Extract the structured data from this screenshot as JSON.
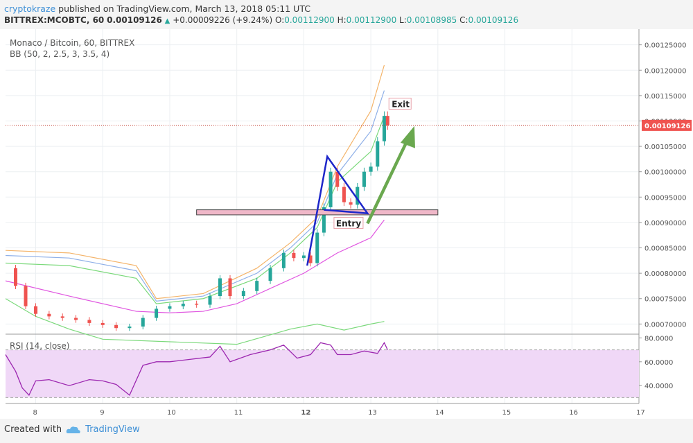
{
  "header": {
    "username": "cryptokraze",
    "published_text": " published on TradingView.com, March 13, 2018 05:11 UTC",
    "symbol": "BITTREX:MCOBTC, 60",
    "last": "0.00109126",
    "change_arrow": "▲",
    "change": "+0.00009226 (+9.24%)",
    "o_label": "O:",
    "o_value": "0.00112900",
    "h_label": "H:",
    "h_value": "0.00112900",
    "l_label": "L:",
    "l_value": "0.00108985",
    "c_label": "C:",
    "c_value": "0.00109126"
  },
  "legend": {
    "pair": "Monaco / Bitcoin, 60, BITTREX",
    "indicator": "BB (50, 2, 2.5, 3, 3.5, 4)",
    "rsi": "RSI (14, close)"
  },
  "annotations": {
    "exit": "Exit",
    "entry": "Entry"
  },
  "price_tag": "0.00109126",
  "footer": {
    "created_with": "Created with",
    "brand": "TradingView",
    "brand_icon": "tradingview-cloud-icon"
  },
  "colors": {
    "up": "#26a69a",
    "down": "#ef5350",
    "blue_line": "#1d26c9",
    "arrow": "#6aa84f",
    "bb_orange": "#f4b46a",
    "bb_blue": "#8fb0e8",
    "bb_green": "#7bd97b",
    "bb_magenta": "#e056e0",
    "zone_fill": "#efb7c8",
    "rsi_line": "#9c27b0",
    "rsi_band": "#f0d8f7",
    "price_tag_bg": "#ef5350"
  },
  "chart_data": [
    {
      "type": "candlestick",
      "x_tick_labels": [
        "8",
        "9",
        "10",
        "11",
        "12",
        "13",
        "14",
        "15",
        "16",
        "17"
      ],
      "y_tick_labels": [
        "0.00070000",
        "0.00075000",
        "0.00080000",
        "0.00085000",
        "0.00090000",
        "0.00095000",
        "0.00100000",
        "0.00105000",
        "0.00110000",
        "0.00115000",
        "0.00120000",
        "0.00125000"
      ],
      "ylim": [
        0.00068,
        0.00127
      ],
      "xlim": [
        7.55,
        17.0
      ],
      "last_price": 0.00109126,
      "grid": true,
      "close": [
        {
          "x": 7.55,
          "y": 0.00081
        },
        {
          "x": 7.7,
          "y": 0.000775
        },
        {
          "x": 7.85,
          "y": 0.000735
        },
        {
          "x": 8.0,
          "y": 0.00072
        },
        {
          "x": 8.2,
          "y": 0.000715
        },
        {
          "x": 8.4,
          "y": 0.000712
        },
        {
          "x": 8.6,
          "y": 0.000708
        },
        {
          "x": 8.8,
          "y": 0.000702
        },
        {
          "x": 9.0,
          "y": 0.000698
        },
        {
          "x": 9.2,
          "y": 0.000692
        },
        {
          "x": 9.4,
          "y": 0.000695
        },
        {
          "x": 9.6,
          "y": 0.000712
        },
        {
          "x": 9.8,
          "y": 0.00073
        },
        {
          "x": 10.0,
          "y": 0.000735
        },
        {
          "x": 10.2,
          "y": 0.00074
        },
        {
          "x": 10.4,
          "y": 0.000738
        },
        {
          "x": 10.6,
          "y": 0.000755
        },
        {
          "x": 10.75,
          "y": 0.00079
        },
        {
          "x": 10.9,
          "y": 0.000755
        },
        {
          "x": 11.1,
          "y": 0.000765
        },
        {
          "x": 11.3,
          "y": 0.000785
        },
        {
          "x": 11.5,
          "y": 0.00081
        },
        {
          "x": 11.7,
          "y": 0.00084
        },
        {
          "x": 11.85,
          "y": 0.00083
        },
        {
          "x": 12.0,
          "y": 0.000835
        },
        {
          "x": 12.1,
          "y": 0.00082
        },
        {
          "x": 12.2,
          "y": 0.00088
        },
        {
          "x": 12.3,
          "y": 0.00093
        },
        {
          "x": 12.4,
          "y": 0.001
        },
        {
          "x": 12.5,
          "y": 0.00097
        },
        {
          "x": 12.6,
          "y": 0.00094
        },
        {
          "x": 12.7,
          "y": 0.000935
        },
        {
          "x": 12.8,
          "y": 0.00097
        },
        {
          "x": 12.9,
          "y": 0.001
        },
        {
          "x": 13.0,
          "y": 0.00101
        },
        {
          "x": 13.1,
          "y": 0.00106
        },
        {
          "x": 13.2,
          "y": 0.00111
        },
        {
          "x": 13.25,
          "y": 0.00109126
        }
      ],
      "bollinger": {
        "upper_outer": [
          {
            "x": 7.55,
            "y": 0.000845
          },
          {
            "x": 8.5,
            "y": 0.00084
          },
          {
            "x": 9.5,
            "y": 0.000815
          },
          {
            "x": 9.8,
            "y": 0.00075
          },
          {
            "x": 10.5,
            "y": 0.00076
          },
          {
            "x": 11.3,
            "y": 0.00081
          },
          {
            "x": 11.8,
            "y": 0.00086
          },
          {
            "x": 12.2,
            "y": 0.00091
          },
          {
            "x": 12.5,
            "y": 0.00101
          },
          {
            "x": 13.0,
            "y": 0.00112
          },
          {
            "x": 13.2,
            "y": 0.00121
          }
        ],
        "upper_inner": [
          {
            "x": 7.55,
            "y": 0.000835
          },
          {
            "x": 8.5,
            "y": 0.00083
          },
          {
            "x": 9.5,
            "y": 0.000805
          },
          {
            "x": 9.8,
            "y": 0.000745
          },
          {
            "x": 10.5,
            "y": 0.000755
          },
          {
            "x": 11.3,
            "y": 0.0008
          },
          {
            "x": 11.8,
            "y": 0.00085
          },
          {
            "x": 12.2,
            "y": 0.0009
          },
          {
            "x": 12.5,
            "y": 0.000995
          },
          {
            "x": 13.0,
            "y": 0.00108
          },
          {
            "x": 13.2,
            "y": 0.00116
          }
        ],
        "mid": [
          {
            "x": 7.55,
            "y": 0.00082
          },
          {
            "x": 8.5,
            "y": 0.000815
          },
          {
            "x": 9.5,
            "y": 0.00079
          },
          {
            "x": 9.8,
            "y": 0.00074
          },
          {
            "x": 10.5,
            "y": 0.00075
          },
          {
            "x": 11.3,
            "y": 0.00079
          },
          {
            "x": 11.8,
            "y": 0.00084
          },
          {
            "x": 12.2,
            "y": 0.00089
          },
          {
            "x": 12.5,
            "y": 0.00098
          },
          {
            "x": 13.0,
            "y": 0.00104
          },
          {
            "x": 13.2,
            "y": 0.00111
          }
        ],
        "basis": [
          {
            "x": 7.55,
            "y": 0.000785
          },
          {
            "x": 8.5,
            "y": 0.000755
          },
          {
            "x": 9.5,
            "y": 0.000725
          },
          {
            "x": 10.0,
            "y": 0.000722
          },
          {
            "x": 10.5,
            "y": 0.000725
          },
          {
            "x": 11.0,
            "y": 0.00074
          },
          {
            "x": 11.5,
            "y": 0.00077
          },
          {
            "x": 12.0,
            "y": 0.0008
          },
          {
            "x": 12.5,
            "y": 0.00084
          },
          {
            "x": 13.0,
            "y": 0.00087
          },
          {
            "x": 13.2,
            "y": 0.000905
          }
        ],
        "lower": [
          {
            "x": 7.55,
            "y": 0.00075
          },
          {
            "x": 8.0,
            "y": 0.000715
          },
          {
            "x": 8.5,
            "y": 0.00069
          },
          {
            "x": 9.0,
            "y": 0.00067
          },
          {
            "x": 11.0,
            "y": 0.00066
          },
          {
            "x": 11.8,
            "y": 0.00069
          },
          {
            "x": 12.2,
            "y": 0.0007
          },
          {
            "x": 12.6,
            "y": 0.000688
          },
          {
            "x": 13.0,
            "y": 0.0007
          },
          {
            "x": 13.2,
            "y": 0.000705
          }
        ]
      },
      "pattern_lines": [
        {
          "x": 12.05,
          "y": 0.000815
        },
        {
          "x": 12.35,
          "y": 0.00103
        },
        {
          "x": 12.95,
          "y": 0.000918
        },
        {
          "x": 12.3,
          "y": 0.000925
        }
      ],
      "zone": {
        "x0": 10.4,
        "x1": 14.0,
        "y0": 0.000915,
        "y1": 0.000925
      },
      "arrow": {
        "x0": 12.95,
        "y0": 0.000898,
        "x1": 13.65,
        "y1": 0.00109
      }
    },
    {
      "type": "line",
      "name": "RSI (14, close)",
      "y_tick_labels": [
        "40.0000",
        "60.0000",
        "80.0000"
      ],
      "ylim": [
        25,
        82
      ],
      "levels": [
        30,
        70
      ],
      "x": [
        7.55,
        7.7,
        7.8,
        7.9,
        8.0,
        8.2,
        8.5,
        8.8,
        9.0,
        9.2,
        9.4,
        9.6,
        9.8,
        10.0,
        10.3,
        10.6,
        10.75,
        10.9,
        11.2,
        11.5,
        11.7,
        11.9,
        12.1,
        12.25,
        12.4,
        12.5,
        12.7,
        12.9,
        13.1,
        13.2,
        13.25
      ],
      "y": [
        66,
        52,
        38,
        32,
        44,
        45,
        40,
        45,
        44,
        41,
        32,
        57,
        60,
        60,
        62,
        64,
        73,
        60,
        66,
        70,
        74,
        63,
        66,
        76,
        74,
        66,
        66,
        69,
        67,
        76,
        70
      ]
    }
  ]
}
